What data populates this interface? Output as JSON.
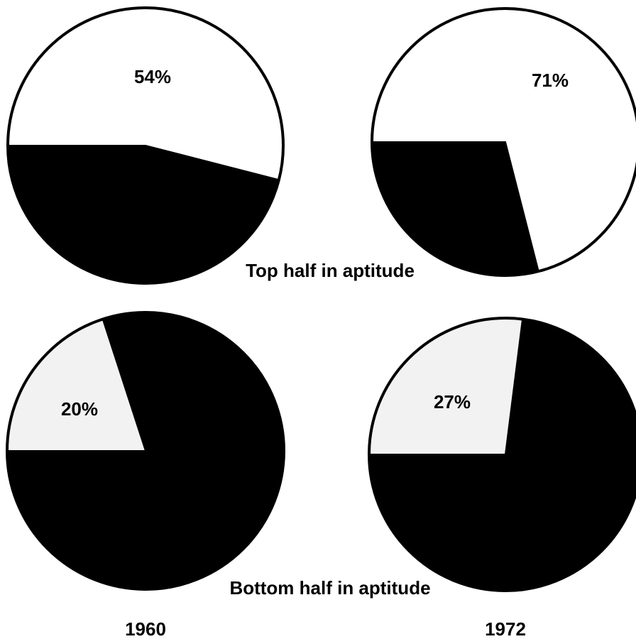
{
  "chart_data": [
    {
      "type": "pie",
      "values": [
        54,
        46
      ],
      "value_labels": [
        "54%",
        null
      ],
      "colors": [
        "#ffffff",
        "#000000"
      ]
    },
    {
      "type": "pie",
      "values": [
        71,
        29
      ],
      "value_labels": [
        "71%",
        null
      ],
      "colors": [
        "#ffffff",
        "#000000"
      ]
    },
    {
      "type": "pie",
      "values": [
        20,
        80
      ],
      "value_labels": [
        "20%",
        null
      ],
      "colors": [
        "#f2f2f2",
        "#000000"
      ]
    },
    {
      "type": "pie",
      "values": [
        27,
        73
      ],
      "value_labels": [
        "27%",
        null
      ],
      "colors": [
        "#f2f2f2",
        "#000000"
      ]
    }
  ],
  "row_labels": [
    "Top half in aptitude",
    "Bottom half in aptitude"
  ],
  "column_labels": [
    "1960",
    "1972"
  ]
}
